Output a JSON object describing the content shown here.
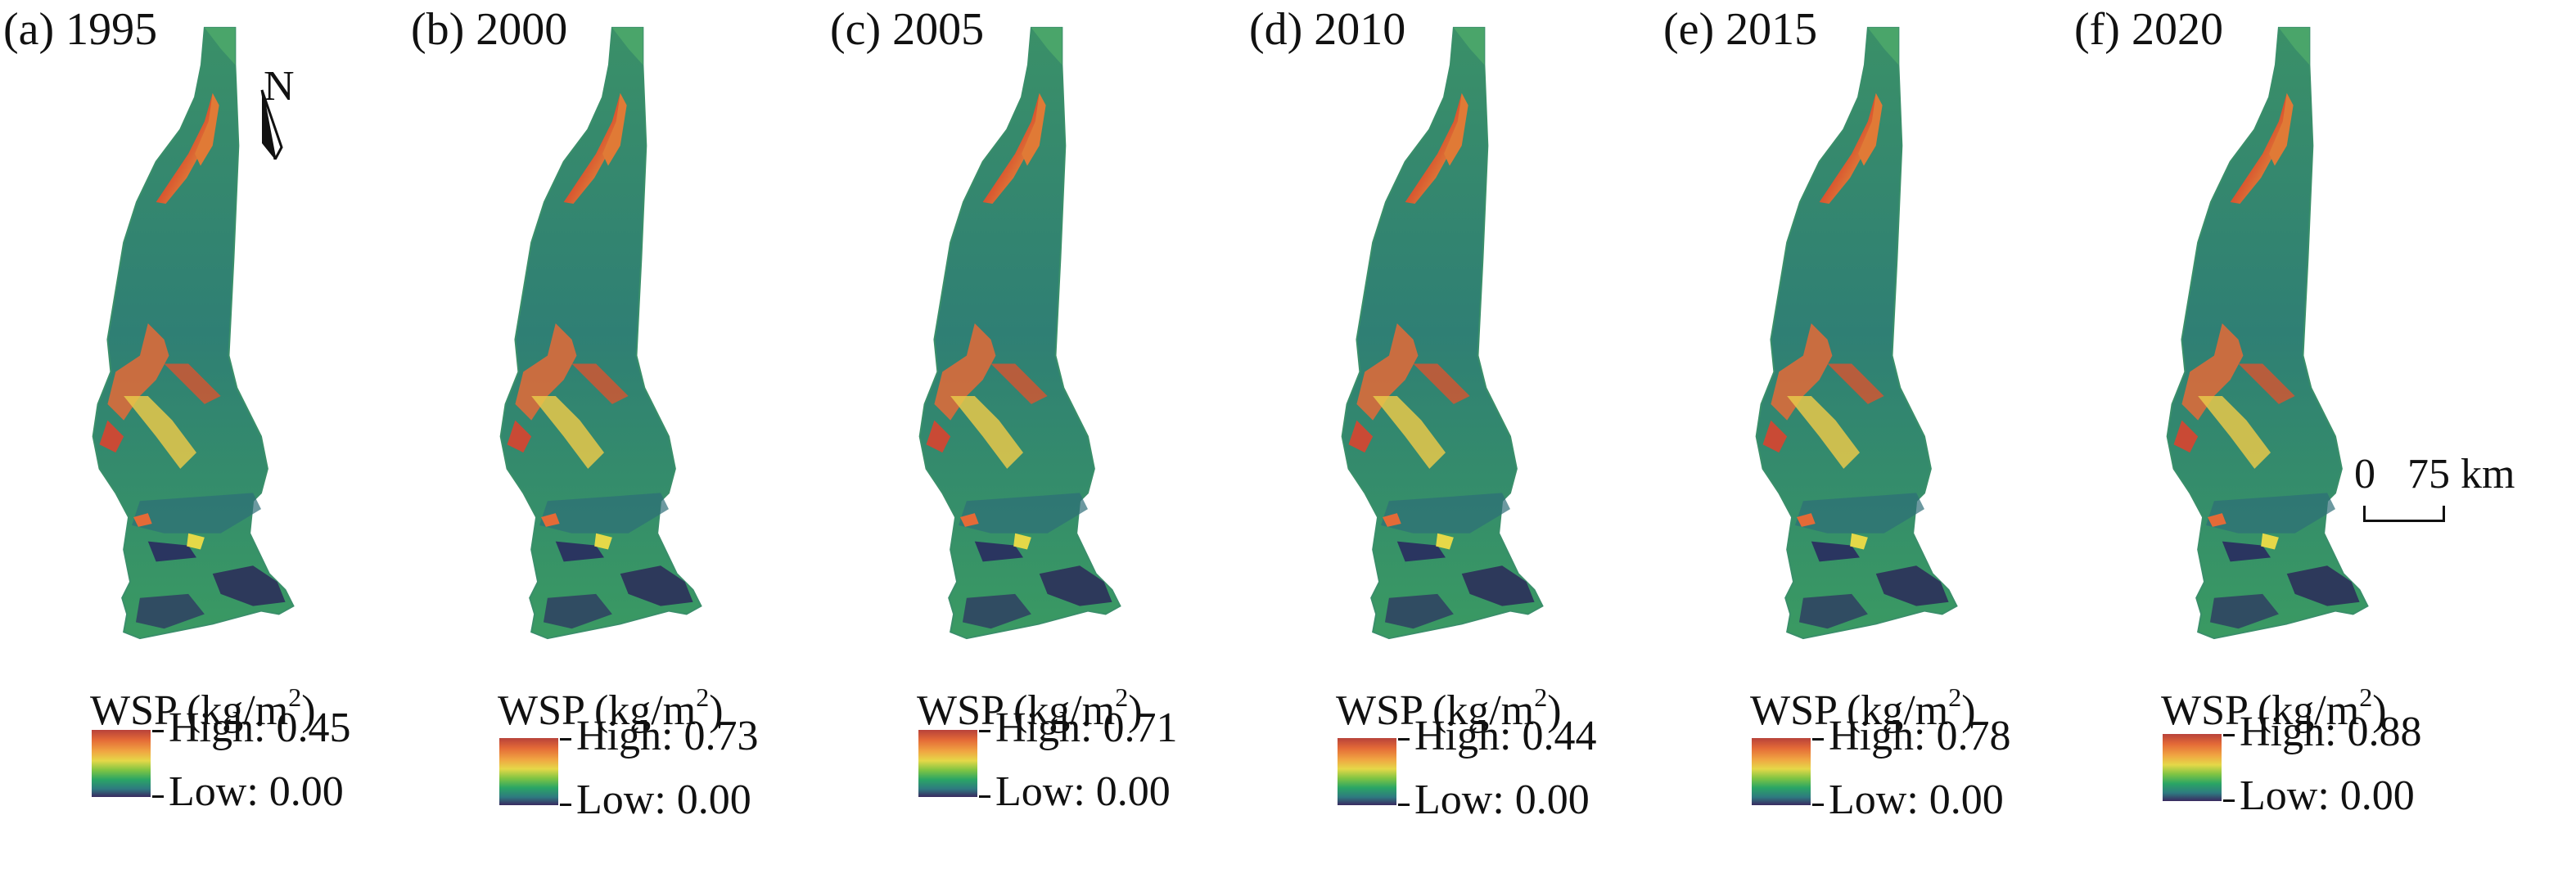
{
  "north_arrow": {
    "label": "N"
  },
  "scale_bar": {
    "label": "0 ⁠ ⁠ ⁠75 km"
  },
  "legend_label": "WSP (kg/m",
  "legend_label_sup": "2",
  "legend_label_close": ")",
  "colors": {
    "background_low": "#3a2a60",
    "body": "#2f7f72",
    "mid_green": "#3aa05c",
    "yellow": "#e5d848",
    "orange": "#e46a37",
    "red": "#b8423a"
  },
  "panels": [
    {
      "title": "(a) 1995",
      "high": "High: 0.45",
      "low": "Low: 0.00"
    },
    {
      "title": "(b) 2000",
      "high": "High: 0.73",
      "low": "Low: 0.00"
    },
    {
      "title": "(c) 2005",
      "high": "High: 0.71",
      "low": "Low: 0.00"
    },
    {
      "title": "(d) 2010",
      "high": "High: 0.44",
      "low": "Low: 0.00"
    },
    {
      "title": "(e) 2015",
      "high": "High: 0.78",
      "low": "Low: 0.00"
    },
    {
      "title": "(f) 2020",
      "high": "High: 0.88",
      "low": "Low: 0.00"
    }
  ]
}
